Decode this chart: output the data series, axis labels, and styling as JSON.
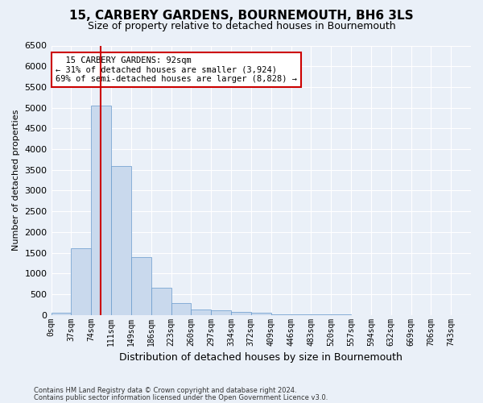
{
  "title": "15, CARBERY GARDENS, BOURNEMOUTH, BH6 3LS",
  "subtitle": "Size of property relative to detached houses in Bournemouth",
  "xlabel": "Distribution of detached houses by size in Bournemouth",
  "ylabel": "Number of detached properties",
  "footer_line1": "Contains HM Land Registry data © Crown copyright and database right 2024.",
  "footer_line2": "Contains public sector information licensed under the Open Government Licence v3.0.",
  "bin_labels": [
    "0sqm",
    "37sqm",
    "74sqm",
    "111sqm",
    "149sqm",
    "186sqm",
    "223sqm",
    "260sqm",
    "297sqm",
    "334sqm",
    "372sqm",
    "409sqm",
    "446sqm",
    "483sqm",
    "520sqm",
    "557sqm",
    "594sqm",
    "632sqm",
    "669sqm",
    "706sqm",
    "743sqm"
  ],
  "bar_values": [
    50,
    1600,
    5050,
    3600,
    1400,
    650,
    280,
    120,
    100,
    70,
    50,
    20,
    10,
    5,
    3,
    2,
    1,
    1,
    1,
    0,
    0
  ],
  "bar_color": "#c9d9ed",
  "bar_edge_color": "#6699cc",
  "annotation_text": "  15 CARBERY GARDENS: 92sqm\n← 31% of detached houses are smaller (3,924)\n69% of semi-detached houses are larger (8,828) →",
  "annotation_box_color": "#ffffff",
  "annotation_box_edge_color": "#cc0000",
  "vline_color": "#cc0000",
  "ylim": [
    0,
    6500
  ],
  "background_color": "#eaf0f8",
  "plot_bg_color": "#eaf0f8",
  "grid_color": "#ffffff",
  "bin_width": 37
}
